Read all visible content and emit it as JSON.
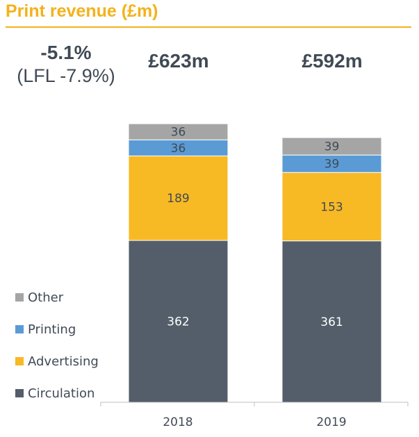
{
  "header": {
    "title": "Print revenue (£m)"
  },
  "change": {
    "pct": "-5.1%",
    "lfl": "(LFL -7.9%)"
  },
  "totals": [
    "£623m",
    "£592m"
  ],
  "legend": [
    {
      "name": "Other",
      "color": "#a5a5a5"
    },
    {
      "name": "Printing",
      "color": "#5b9bd5"
    },
    {
      "name": "Advertising",
      "color": "#f7b924"
    },
    {
      "name": "Circulation",
      "color": "#535e6a"
    }
  ],
  "chart_data": {
    "type": "bar",
    "stacked": true,
    "categories": [
      "2018",
      "2019"
    ],
    "series": [
      {
        "name": "Circulation",
        "values": [
          362,
          361
        ],
        "color": "#535e6a"
      },
      {
        "name": "Advertising",
        "values": [
          189,
          153
        ],
        "color": "#f7b924"
      },
      {
        "name": "Printing",
        "values": [
          36,
          39
        ],
        "color": "#5b9bd5"
      },
      {
        "name": "Other",
        "values": [
          36,
          39
        ],
        "color": "#a5a5a5"
      }
    ],
    "title": "Print revenue (£m)",
    "legend_position": "left",
    "grid": false
  }
}
